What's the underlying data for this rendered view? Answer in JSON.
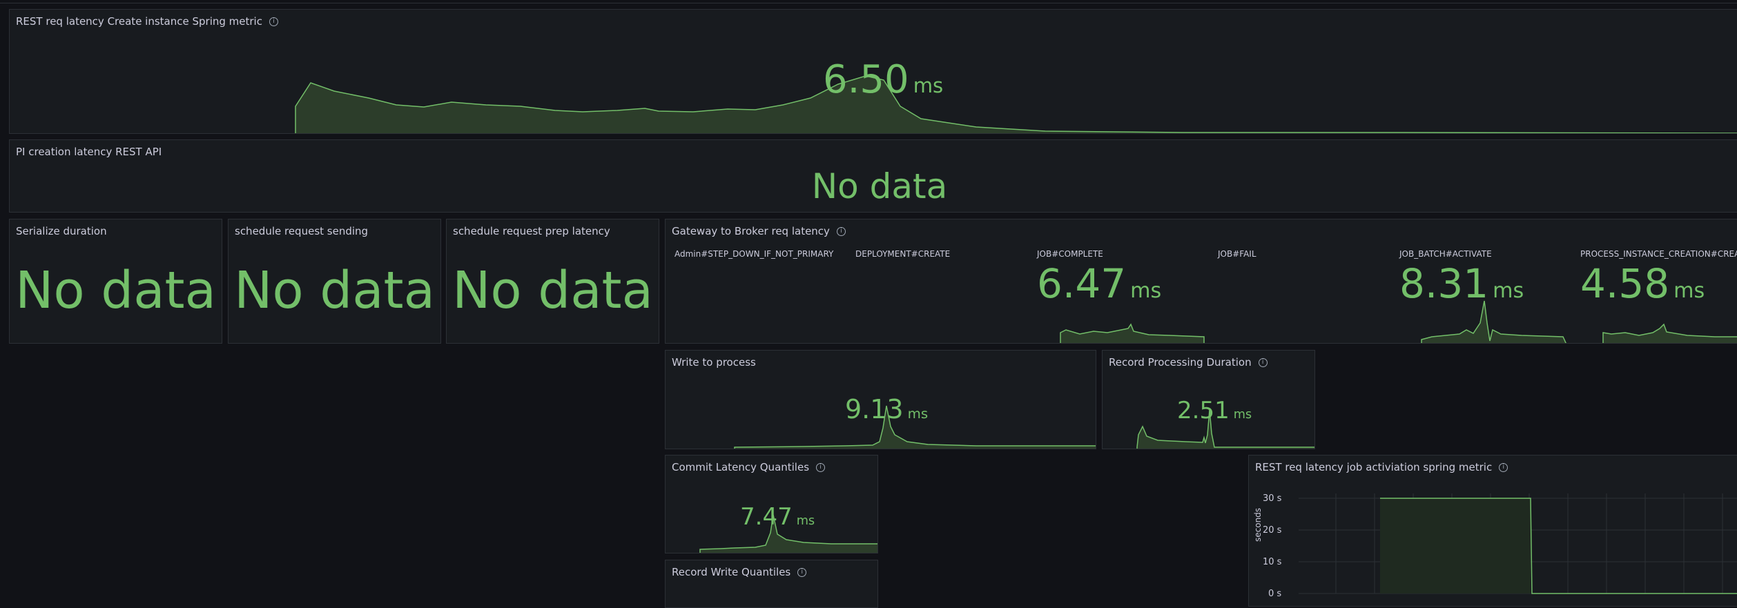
{
  "panels": {
    "rest_create": {
      "title": "REST req latency Create instance Spring metric",
      "value": "6.50",
      "unit": "ms"
    },
    "pi_creation": {
      "title": "PI creation latency REST API",
      "status": "No data"
    },
    "serialize": {
      "title": "Serialize duration",
      "status": "No data"
    },
    "schedule_sending": {
      "title": "schedule request sending",
      "status": "No data"
    },
    "schedule_prep": {
      "title": "schedule request prep latency",
      "status": "No data"
    },
    "gateway_broker": {
      "title": "Gateway to Broker req latency",
      "series": [
        {
          "label": "Admin#STEP_DOWN_IF_NOT_PRIMARY",
          "value": "",
          "unit": ""
        },
        {
          "label": "DEPLOYMENT#CREATE",
          "value": "",
          "unit": ""
        },
        {
          "label": "JOB#COMPLETE",
          "value": "6.47",
          "unit": "ms"
        },
        {
          "label": "JOB#FAIL",
          "value": "",
          "unit": ""
        },
        {
          "label": "JOB_BATCH#ACTIVATE",
          "value": "8.31",
          "unit": "ms"
        },
        {
          "label": "PROCESS_INSTANCE_CREATION#CREAT",
          "value": "4.58",
          "unit": "ms"
        }
      ]
    },
    "write_process": {
      "title": "Write to process",
      "value": "9.13",
      "unit": "ms"
    },
    "record_processing": {
      "title": "Record Processing Duration",
      "value": "2.51",
      "unit": "ms"
    },
    "commit_latency": {
      "title": "Commit Latency Quantiles",
      "value": "7.47",
      "unit": "ms"
    },
    "record_write": {
      "title": "Record Write Quantiles"
    },
    "rest_job_activation": {
      "title": "REST req latency job activiation spring metric",
      "ylabel": "seconds",
      "yticks": [
        "30 s",
        "20 s",
        "10 s",
        "0 s"
      ]
    }
  },
  "colors": {
    "accent": "#73bf69",
    "panel_bg": "#181b1f",
    "page_bg": "#111217",
    "border": "#2c3036"
  }
}
